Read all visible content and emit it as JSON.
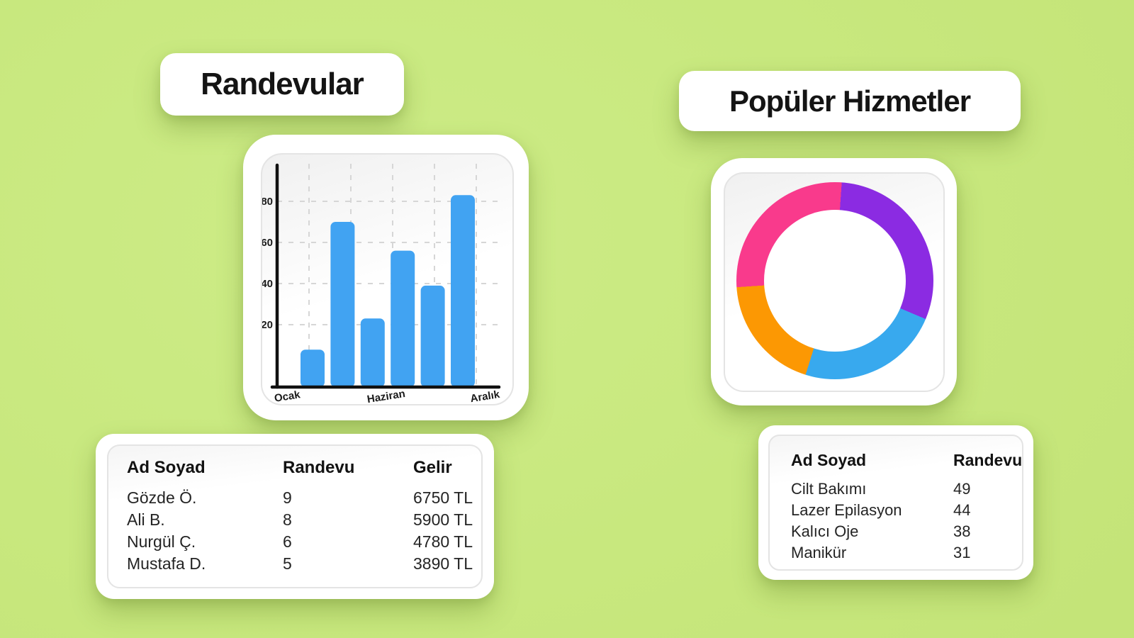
{
  "page": {
    "background_color": "#C8E87E",
    "text_color": "#161616"
  },
  "left": {
    "title": "Randevular",
    "table": {
      "headers": [
        "Ad Soyad",
        "Randevu",
        "Gelir"
      ],
      "rows": [
        [
          "Gözde Ö.",
          "9",
          "6750 TL"
        ],
        [
          "Ali B.",
          "8",
          "5900 TL"
        ],
        [
          "Nurgül Ç.",
          "6",
          "4780 TL"
        ],
        [
          "Mustafa D.",
          "5",
          "3890 TL"
        ]
      ]
    }
  },
  "right": {
    "title": "Popüler Hizmetler",
    "table": {
      "headers": [
        "Ad Soyad",
        "Randevu"
      ],
      "rows": [
        [
          "Cilt Bakımı",
          "49"
        ],
        [
          "Lazer Epilasyon",
          "44"
        ],
        [
          "Kalıcı Oje",
          "38"
        ],
        [
          "Manikür",
          "31"
        ]
      ]
    }
  },
  "chart_data": [
    {
      "type": "bar",
      "title": "Randevular",
      "x_tick_labels": [
        "Ocak",
        "Haziran",
        "Aralık"
      ],
      "values": [
        12,
        70,
        23,
        56,
        39,
        83
      ],
      "yticks": [
        20,
        40,
        60,
        80
      ],
      "ylim": [
        0,
        95
      ],
      "bar_color": "#41A3F2",
      "axis_color": "#101010",
      "grid": "dashed",
      "legend": "none"
    },
    {
      "type": "pie",
      "title": "Popüler Hizmetler",
      "donut": true,
      "direction": "clockwise",
      "start_angle_deg": 4,
      "slices": [
        {
          "label": "Cilt Bakımı",
          "value": 49,
          "color": "#8B2BE2"
        },
        {
          "label": "Kalıcı Oje",
          "value": 38,
          "color": "#38A9EE"
        },
        {
          "label": "Manikür",
          "value": 31,
          "color": "#FC9803"
        },
        {
          "label": "Lazer Epilasyon",
          "value": 44,
          "color": "#F93A8C"
        }
      ],
      "legend": "none"
    }
  ]
}
